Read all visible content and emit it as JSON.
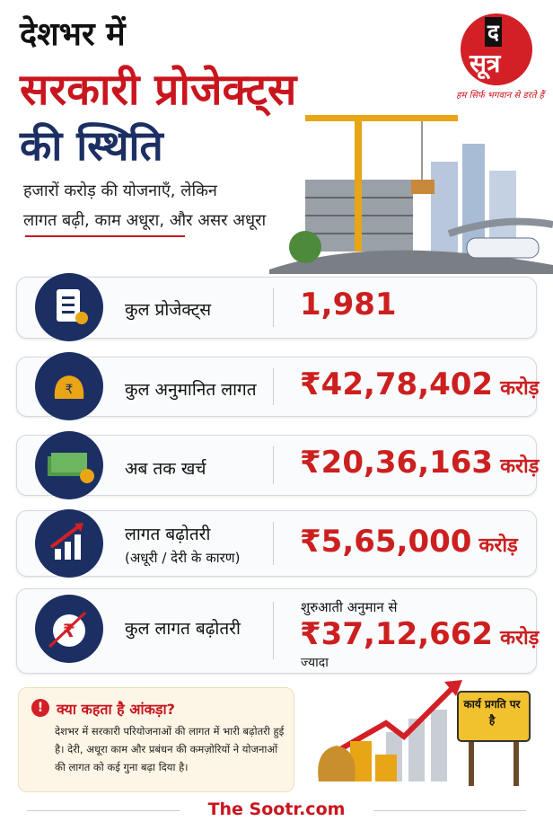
{
  "header": {
    "title_line1": "देशभर में",
    "title_line2": "सरकारी प्रोजेक्ट्स",
    "title_line3": "की स्थिति",
    "subtitle_line1": "हजारों करोड़ की योजनाएँ, लेकिन",
    "subtitle_line2": "लागत बढ़ी, काम अधूरा, और असर अधूरा"
  },
  "logo": {
    "mark_top": "द",
    "mark_bottom": "सूत्र",
    "tagline": "हम सिर्फ भगवान से डरते हैं"
  },
  "stats": [
    {
      "label": "कुल प्रोजेक्ट्स",
      "value": "1,981"
    },
    {
      "label": "कुल अनुमानित लागत",
      "value": "₹42,78,402",
      "unit": "करोड़"
    },
    {
      "label": "अब तक खर्च",
      "value": "₹20,36,163",
      "unit": "करोड़"
    },
    {
      "label": "लागत बढ़ोतरी",
      "sublabel": "(अधूरी / देरी के कारण)",
      "value": "₹5,65,000",
      "unit": "करोड़"
    },
    {
      "label": "कुल लागत बढ़ोतरी",
      "prefix": "शुरुआती अनुमान से",
      "value": "₹37,12,662",
      "unit": "करोड़",
      "suffix": "ज्यादा"
    }
  ],
  "note": {
    "title": "क्या कहता है आंकड़ा?",
    "text": "देशभर में सरकारी परियोजनाओं की लागत में भारी बढ़ोतरी हुई है। देरी, अधूरा काम और प्रबंधन की कमज़ोरियों ने योजनाओं की लागत को कई गुना बढ़ा दिया है।"
  },
  "sign": "कार्य प्रगति पर है",
  "footer": "The Sootr.com"
}
